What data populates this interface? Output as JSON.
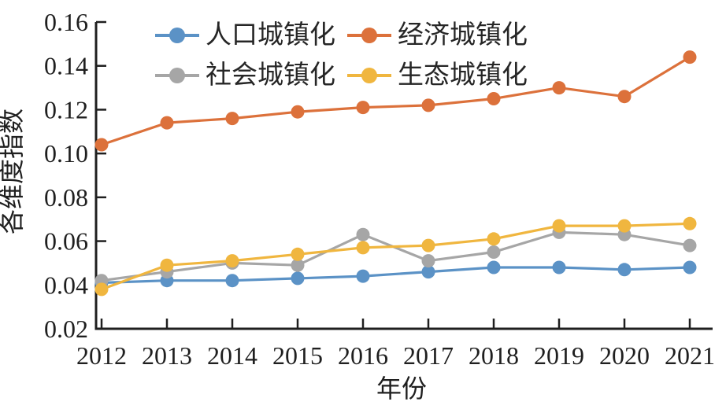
{
  "chart_data": {
    "type": "line",
    "title": "",
    "xlabel": "年份",
    "ylabel": "各维度指数",
    "x": [
      2012,
      2013,
      2014,
      2015,
      2016,
      2017,
      2018,
      2019,
      2020,
      2021
    ],
    "y_ticks": [
      "0.02",
      "0.04",
      "0.06",
      "0.08",
      "0.10",
      "0.12",
      "0.14",
      "0.16"
    ],
    "ylim": [
      0.02,
      0.16
    ],
    "grid": false,
    "legend_position": "top-center-inside, 2 columns",
    "axis_color": "#1f1f1f",
    "series": [
      {
        "name": "人口城镇化",
        "color": "#5B92C6",
        "values": [
          0.041,
          0.042,
          0.042,
          0.043,
          0.044,
          0.046,
          0.048,
          0.048,
          0.047,
          0.048
        ]
      },
      {
        "name": "经济城镇化",
        "color": "#DC713B",
        "values": [
          0.104,
          0.114,
          0.116,
          0.119,
          0.121,
          0.122,
          0.125,
          0.13,
          0.126,
          0.144
        ]
      },
      {
        "name": "社会城镇化",
        "color": "#A6A6A6",
        "values": [
          0.042,
          0.046,
          0.05,
          0.049,
          0.063,
          0.051,
          0.055,
          0.064,
          0.063,
          0.058
        ]
      },
      {
        "name": "生态城镇化",
        "color": "#F0B63F",
        "values": [
          0.038,
          0.049,
          0.051,
          0.054,
          0.057,
          0.058,
          0.061,
          0.067,
          0.067,
          0.068
        ]
      }
    ]
  }
}
